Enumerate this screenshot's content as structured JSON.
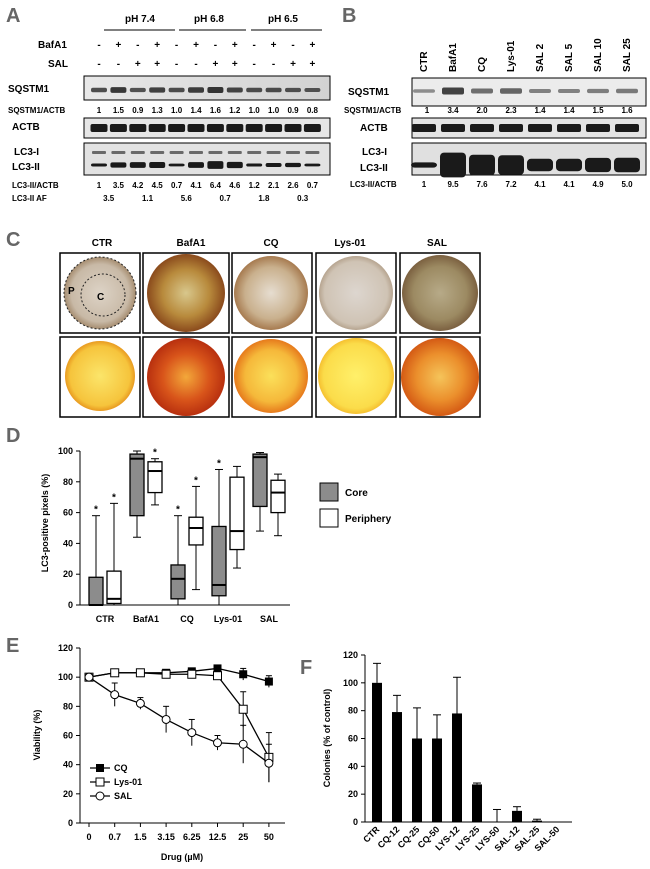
{
  "panels": [
    "A",
    "B",
    "C",
    "D",
    "E",
    "F"
  ],
  "panel_a": {
    "ph_labels": [
      "pH 7.4",
      "pH 6.8",
      "pH 6.5"
    ],
    "row_bafa1_label": "BafA1",
    "row_sal_label": "SAL",
    "bafa1_signs": [
      "-",
      "+",
      "-",
      "+",
      "-",
      "+",
      "-",
      "+",
      "-",
      "+",
      "-",
      "+"
    ],
    "sal_signs": [
      "-",
      "-",
      "+",
      "+",
      "-",
      "-",
      "+",
      "+",
      "-",
      "-",
      "+",
      "+"
    ],
    "blot_sqstm1": "SQSTM1",
    "ratio_sqstm1_label": "SQSTM1/ACTB",
    "ratio_sqstm1": [
      "1",
      "1.5",
      "0.9",
      "1.3",
      "1.0",
      "1.4",
      "1.6",
      "1.2",
      "1.0",
      "1.0",
      "0.9",
      "0.8"
    ],
    "blot_actb": "ACTB",
    "blot_lc3i": "LC3-I",
    "blot_lc3ii": "LC3-II",
    "ratio_lc3_label": "LC3-II/ACTB",
    "ratio_lc3": [
      "1",
      "3.5",
      "4.2",
      "4.5",
      "0.7",
      "4.1",
      "6.4",
      "4.6",
      "1.2",
      "2.1",
      "2.6",
      "0.7"
    ],
    "af_label": "LC3-II AF",
    "af_values": [
      "3.5",
      "1.1",
      "5.6",
      "0.7",
      "1.8",
      "0.3"
    ]
  },
  "panel_b": {
    "lanes": [
      "CTR",
      "BafA1",
      "CQ",
      "Lys-01",
      "SAL 2",
      "SAL 5",
      "SAL 10",
      "SAL 25"
    ],
    "blot_sqstm1": "SQSTM1",
    "ratio_sqstm1_label": "SQSTM1/ACTB",
    "ratio_sqstm1": [
      "1",
      "3.4",
      "2.0",
      "2.3",
      "1.4",
      "1.4",
      "1.5",
      "1.6"
    ],
    "blot_actb": "ACTB",
    "blot_lc3i": "LC3-I",
    "blot_lc3ii": "LC3-II",
    "ratio_lc3_label": "LC3-II/ACTB",
    "ratio_lc3": [
      "1",
      "9.5",
      "7.6",
      "7.2",
      "4.1",
      "4.1",
      "4.9",
      "5.0"
    ]
  },
  "panel_c": {
    "columns": [
      "CTR",
      "BafA1",
      "CQ",
      "Lys-01",
      "SAL"
    ],
    "periphery_letter": "P",
    "core_letter": "C"
  },
  "chart_data": [
    {
      "type": "box",
      "panel": "D",
      "ylabel": "LC3-positive pixels (%)",
      "ylim": [
        0,
        100
      ],
      "yticks": [
        "0",
        "20",
        "40",
        "60",
        "80",
        "100"
      ],
      "categories": [
        "CTR",
        "BafA1",
        "CQ",
        "Lys-01",
        "SAL"
      ],
      "legend": [
        {
          "name": "Core",
          "color": "#8c8c8c"
        },
        {
          "name": "Periphery",
          "color": "#ffffff"
        }
      ],
      "series": [
        {
          "name": "Core",
          "boxes": [
            {
              "min": 0,
              "q1": 0,
              "median": 0,
              "q3": 18,
              "max": 58,
              "star": true
            },
            {
              "min": 44,
              "q1": 58,
              "median": 95,
              "q3": 98,
              "max": 100,
              "star": false
            },
            {
              "min": 0,
              "q1": 4,
              "median": 17,
              "q3": 26,
              "max": 58,
              "star": true
            },
            {
              "min": 0,
              "q1": 6,
              "median": 13,
              "q3": 51,
              "max": 88,
              "star": true
            },
            {
              "min": 48,
              "q1": 64,
              "median": 96,
              "q3": 98,
              "max": 99,
              "star": false
            }
          ]
        },
        {
          "name": "Periphery",
          "boxes": [
            {
              "min": 0,
              "q1": 1,
              "median": 4,
              "q3": 22,
              "max": 66,
              "star": true
            },
            {
              "min": 65,
              "q1": 73,
              "median": 87,
              "q3": 93,
              "max": 95,
              "star": true
            },
            {
              "min": 10,
              "q1": 39,
              "median": 50,
              "q3": 57,
              "max": 77,
              "star": true
            },
            {
              "min": 24,
              "q1": 36,
              "median": 48,
              "q3": 83,
              "max": 90,
              "star": false
            },
            {
              "min": 45,
              "q1": 60,
              "median": 73,
              "q3": 81,
              "max": 85,
              "star": false
            }
          ]
        }
      ]
    },
    {
      "type": "line",
      "panel": "E",
      "ylabel": "Viability (%)",
      "xlabel": "Drug (µM)",
      "ylim": [
        0,
        120
      ],
      "yticks": [
        "0",
        "20",
        "40",
        "60",
        "80",
        "100",
        "120"
      ],
      "categories": [
        "0",
        "0.7",
        "1.5",
        "3.15",
        "6.25",
        "12.5",
        "25",
        "50"
      ],
      "series": [
        {
          "name": "CQ",
          "marker": "filled-square",
          "values": [
            100,
            103,
            103,
            103,
            104,
            106,
            102,
            97
          ],
          "errors": [
            2,
            2,
            2,
            2,
            2,
            2,
            4,
            4
          ]
        },
        {
          "name": "Lys-01",
          "marker": "open-square",
          "values": [
            100,
            103,
            103,
            102,
            102,
            101,
            78,
            45
          ],
          "errors": [
            2,
            2,
            2,
            2,
            2,
            2,
            12,
            17
          ]
        },
        {
          "name": "SAL",
          "marker": "open-circle",
          "values": [
            100,
            88,
            82,
            71,
            62,
            55,
            54,
            41
          ],
          "errors": [
            2,
            8,
            4,
            9,
            9,
            5,
            13,
            13
          ]
        }
      ]
    },
    {
      "type": "bar",
      "panel": "F",
      "ylabel": "Colonies (% of control)",
      "ylim": [
        0,
        120
      ],
      "yticks": [
        "0",
        "20",
        "40",
        "60",
        "80",
        "100",
        "120"
      ],
      "categories": [
        "CTR",
        "CQ-12",
        "CQ-25",
        "CQ-50",
        "LYS-12",
        "LYS-25",
        "LYS-50",
        "SAL-12",
        "SAL-25",
        "SAL-50"
      ],
      "values": [
        100,
        79,
        60,
        60,
        78,
        27,
        0,
        8,
        1,
        0
      ],
      "errors": [
        14,
        12,
        22,
        17,
        26,
        1,
        9,
        3,
        1,
        0
      ]
    }
  ]
}
